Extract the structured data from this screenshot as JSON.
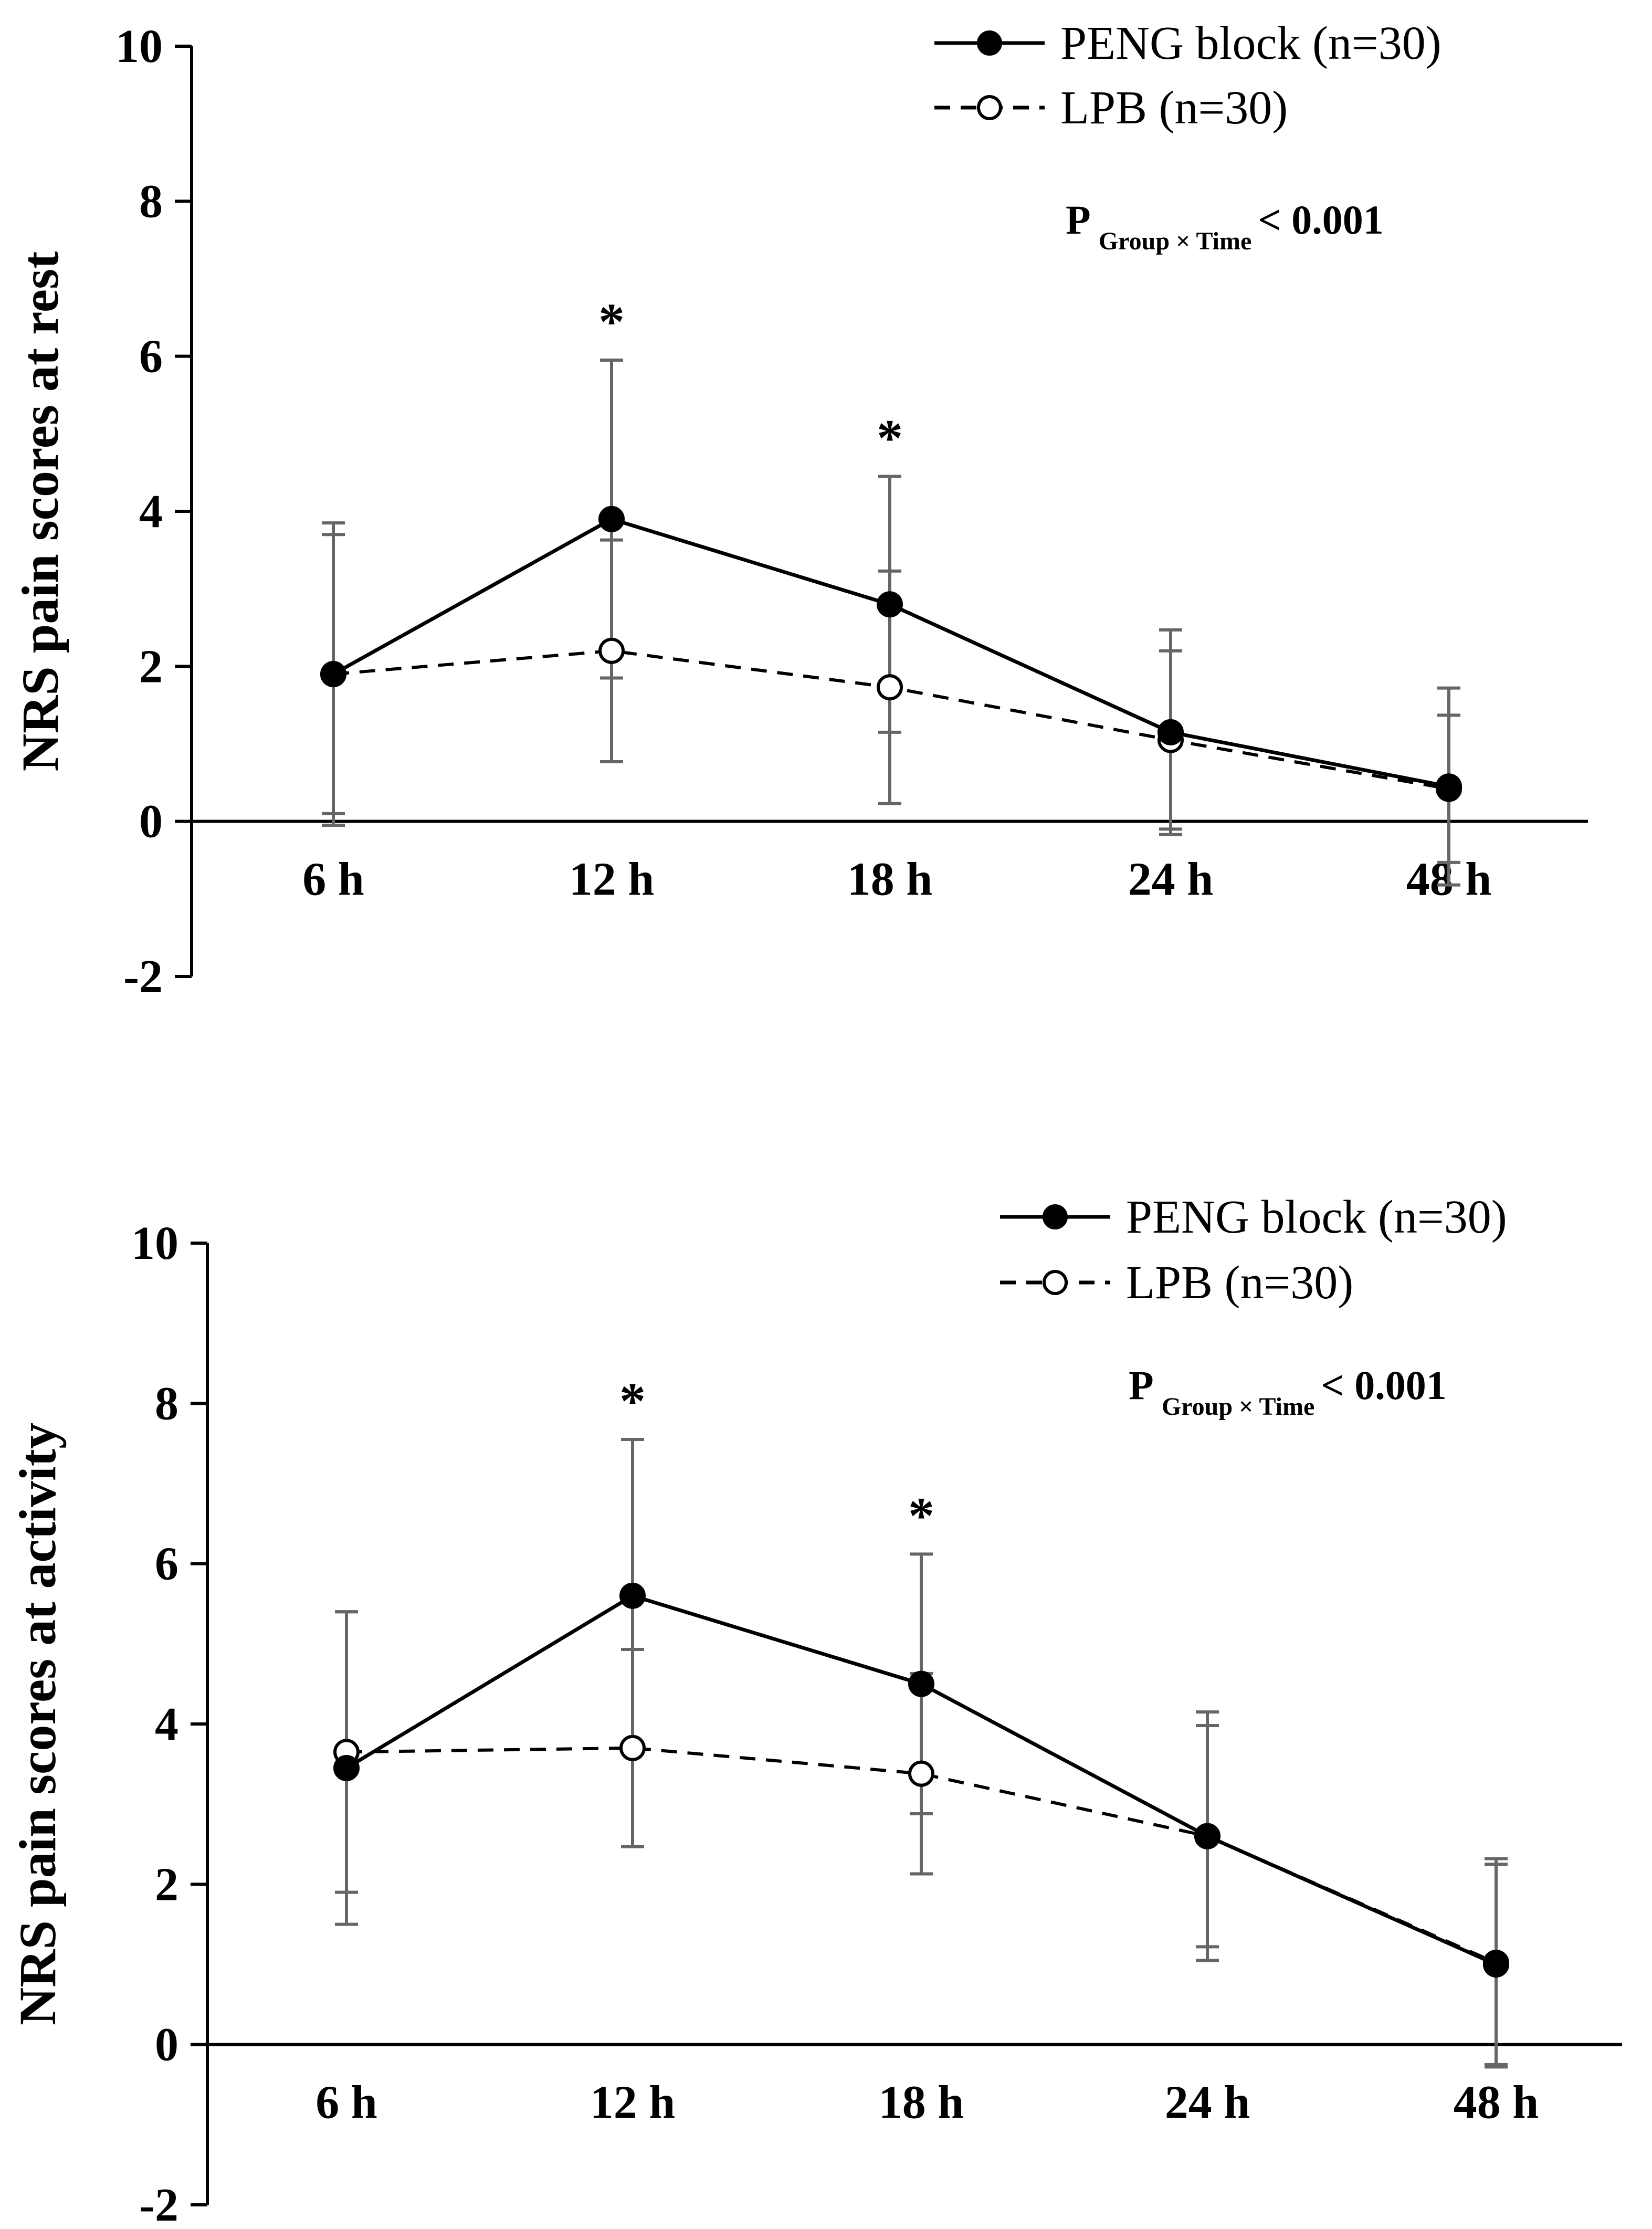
{
  "chart_data": [
    {
      "type": "line",
      "panel": "top",
      "ylabel": "NRS pain scores at rest",
      "xlabel": "",
      "categories": [
        "6 h",
        "12 h",
        "18 h",
        "24 h",
        "48 h"
      ],
      "ylim": [
        -2,
        10
      ],
      "yticks": [
        "-2",
        "0",
        "2",
        "4",
        "6",
        "8",
        "10"
      ],
      "series": [
        {
          "name": "PENG block (n=30)",
          "style": "solid",
          "marker": "filled",
          "values": [
            1.9,
            3.9,
            2.8,
            1.15,
            0.45
          ],
          "errors": [
            1.95,
            2.05,
            1.65,
            1.32,
            1.27
          ]
        },
        {
          "name": "LPB (n=30)",
          "style": "dashed",
          "marker": "open",
          "values": [
            1.9,
            2.2,
            1.73,
            1.05,
            0.42
          ],
          "errors": [
            1.8,
            1.43,
            1.5,
            1.15,
            0.95
          ]
        }
      ],
      "annotation": {
        "p": "P",
        "sub": "Group × Time",
        "value": "< 0.001"
      },
      "significance": [
        {
          "category": "12 h",
          "label": "*"
        },
        {
          "category": "18 h",
          "label": "*"
        }
      ]
    },
    {
      "type": "line",
      "panel": "bottom",
      "ylabel": "NRS pain scores at activity",
      "xlabel": "",
      "categories": [
        "6 h",
        "12 h",
        "18 h",
        "24 h",
        "48 h"
      ],
      "ylim": [
        -2,
        10
      ],
      "yticks": [
        "-2",
        "0",
        "2",
        "4",
        "6",
        "8",
        "10"
      ],
      "series": [
        {
          "name": "PENG block (n=30)",
          "style": "solid",
          "marker": "filled",
          "values": [
            3.45,
            5.6,
            4.5,
            2.6,
            1.0
          ],
          "errors": [
            1.95,
            1.95,
            1.62,
            1.55,
            1.25
          ]
        },
        {
          "name": "LPB (n=30)",
          "style": "dashed",
          "marker": "open",
          "values": [
            3.65,
            3.7,
            3.38,
            2.6,
            1.02
          ],
          "errors": [
            1.75,
            1.23,
            1.25,
            1.38,
            1.3
          ]
        }
      ],
      "annotation": {
        "p": "P",
        "sub": "Group × Time",
        "value": "< 0.001"
      },
      "significance": [
        {
          "category": "12 h",
          "label": "*"
        },
        {
          "category": "18 h",
          "label": "*"
        }
      ]
    }
  ]
}
